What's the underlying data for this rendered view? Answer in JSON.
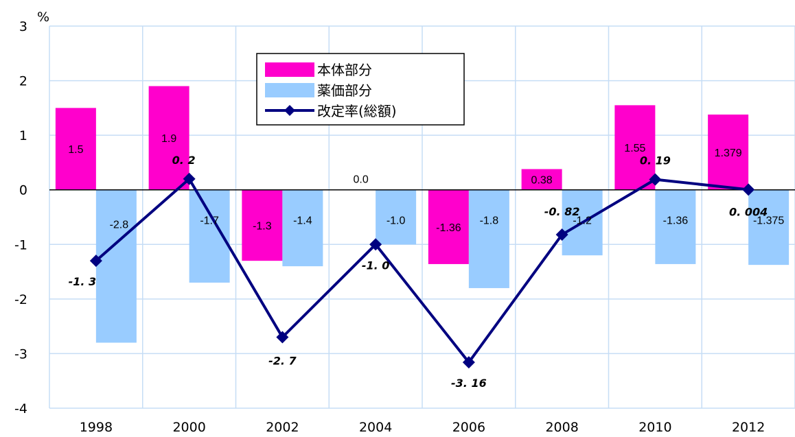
{
  "chart_data": {
    "type": "bar",
    "unit_label": "%",
    "categories": [
      "1998",
      "2000",
      "2002",
      "2004",
      "2006",
      "2008",
      "2010",
      "2012"
    ],
    "series": [
      {
        "name": "本体部分",
        "color": "#ff00cc",
        "values": [
          1.5,
          1.9,
          -1.3,
          0.0,
          -1.36,
          0.38,
          1.55,
          1.379
        ],
        "labels": [
          "1.5",
          "1.9",
          "-1.3",
          "0.0",
          "-1.36",
          "0.38",
          "1.55",
          "1.379"
        ]
      },
      {
        "name": "薬価部分",
        "color": "#99ccff",
        "values": [
          -2.8,
          -1.7,
          -1.4,
          -1.0,
          -1.8,
          -1.2,
          -1.36,
          -1.375
        ],
        "labels": [
          "-2.8",
          "-1.7",
          "-1.4",
          "-1.0",
          "-1.8",
          "-1.2",
          "-1.36",
          "-1.375"
        ]
      },
      {
        "name": "改定率(総額)",
        "type": "line",
        "color": "#000080",
        "values": [
          -1.3,
          0.2,
          -2.7,
          -1.0,
          -3.16,
          -0.82,
          0.19,
          0.004
        ],
        "labels": [
          "-1. 3",
          "0. 2",
          "-2. 7",
          "-1. 0",
          "-3. 16",
          "-0. 82",
          "0. 19",
          "0. 004"
        ]
      }
    ],
    "yticks": [
      "3",
      "2",
      "1",
      "0",
      "-1",
      "-2",
      "-3",
      "-4"
    ],
    "ylim": [
      -4,
      3
    ],
    "grid": true,
    "legend_position": "top-center"
  }
}
